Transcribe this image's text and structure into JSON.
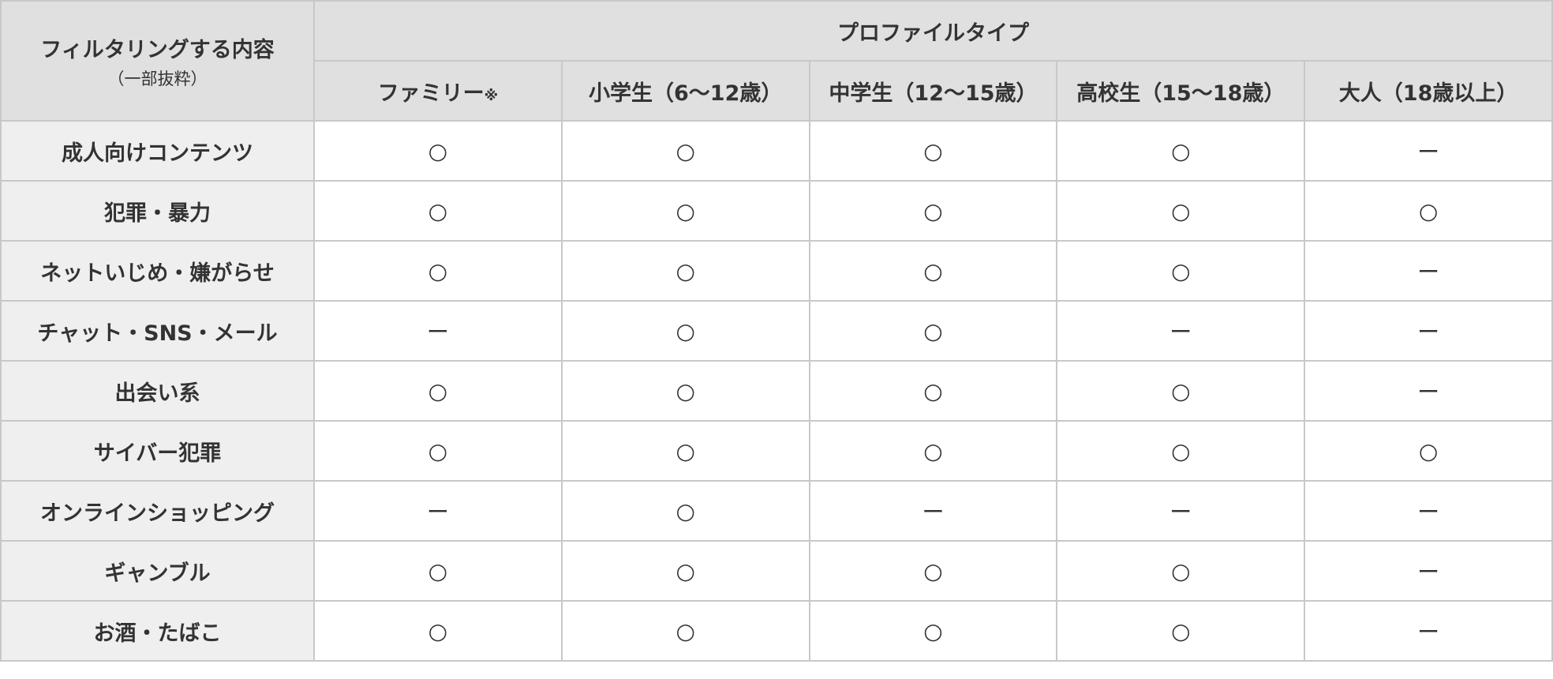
{
  "header": {
    "filter_title": "フィルタリングする内容",
    "filter_subtitle": "（一部抜粋）",
    "profile_title": "プロファイルタイプ",
    "columns": [
      {
        "label": "ファミリー",
        "note": "※"
      },
      {
        "label": "小学生（6～12歳）",
        "note": ""
      },
      {
        "label": "中学生（12～15歳）",
        "note": ""
      },
      {
        "label": "高校生（15～18歳）",
        "note": ""
      },
      {
        "label": "大人（18歳以上）",
        "note": ""
      }
    ]
  },
  "rows": [
    {
      "label": "成人向けコンテンツ",
      "values": [
        "○",
        "○",
        "○",
        "○",
        "ー"
      ]
    },
    {
      "label": "犯罪・暴力",
      "values": [
        "○",
        "○",
        "○",
        "○",
        "○"
      ]
    },
    {
      "label": "ネットいじめ・嫌がらせ",
      "values": [
        "○",
        "○",
        "○",
        "○",
        "ー"
      ]
    },
    {
      "label": "チャット・SNS・メール",
      "values": [
        "ー",
        "○",
        "○",
        "ー",
        "ー"
      ]
    },
    {
      "label": "出会い系",
      "values": [
        "○",
        "○",
        "○",
        "○",
        "ー"
      ]
    },
    {
      "label": "サイバー犯罪",
      "values": [
        "○",
        "○",
        "○",
        "○",
        "○"
      ]
    },
    {
      "label": "オンラインショッピング",
      "values": [
        "ー",
        "○",
        "ー",
        "ー",
        "ー"
      ]
    },
    {
      "label": "ギャンブル",
      "values": [
        "○",
        "○",
        "○",
        "○",
        "ー"
      ]
    },
    {
      "label": "お酒・たばこ",
      "values": [
        "○",
        "○",
        "○",
        "○",
        "ー"
      ]
    }
  ]
}
